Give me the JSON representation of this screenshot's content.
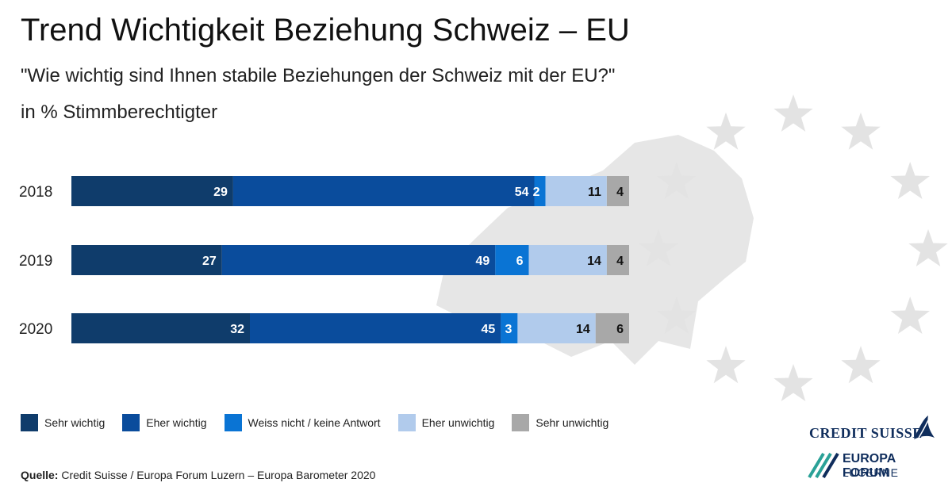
{
  "title": "Trend Wichtigkeit Beziehung Schweiz – EU",
  "subtitle": "\"Wie wichtig sind Ihnen stabile Beziehungen der Schweiz mit der EU?\"",
  "unit_label": "in % Stimmberechtigter",
  "chart_data": {
    "type": "bar",
    "orientation": "horizontal",
    "stacked": true,
    "categories": [
      "2018",
      "2019",
      "2020"
    ],
    "series": [
      {
        "name": "Sehr wichtig",
        "color": "#0f3c6b",
        "label_color": "#ffffff",
        "values": [
          29,
          27,
          32
        ]
      },
      {
        "name": "Eher wichtig",
        "color": "#0a4c9c",
        "label_color": "#ffffff",
        "values": [
          54,
          49,
          45
        ]
      },
      {
        "name": "Weiss nicht / keine Antwort",
        "color": "#0a74d4",
        "label_color": "#ffffff",
        "values": [
          2,
          6,
          3
        ]
      },
      {
        "name": "Eher unwichtig",
        "color": "#b1cbec",
        "label_color": "#111111",
        "values": [
          11,
          14,
          14
        ]
      },
      {
        "name": "Sehr unwichtig",
        "color": "#a8a8a8",
        "label_color": "#111111",
        "values": [
          4,
          4,
          6
        ]
      }
    ],
    "xlim": [
      0,
      100
    ],
    "legend_position": "bottom"
  },
  "legend": [
    {
      "label": "Sehr wichtig",
      "color": "#0f3c6b"
    },
    {
      "label": "Eher wichtig",
      "color": "#0a4c9c"
    },
    {
      "label": "Weiss nicht / keine Antwort",
      "color": "#0a74d4"
    },
    {
      "label": "Eher unwichtig",
      "color": "#b1cbec"
    },
    {
      "label": "Sehr unwichtig",
      "color": "#a8a8a8"
    }
  ],
  "source": {
    "label": "Quelle:",
    "text": " Credit Suisse / Europa Forum Luzern – Europa Barometer 2020"
  },
  "logos": {
    "credit_suisse": "CREDIT SUISSE",
    "europa_forum_top": "EUROPA FORUM",
    "europa_forum_bottom": "LUCERNE"
  },
  "colors": {
    "background_shape": "#e6e6e6",
    "star": "#e3e3e3",
    "brand_navy": "#0f2d5c",
    "brand_green": "#2aa197"
  }
}
